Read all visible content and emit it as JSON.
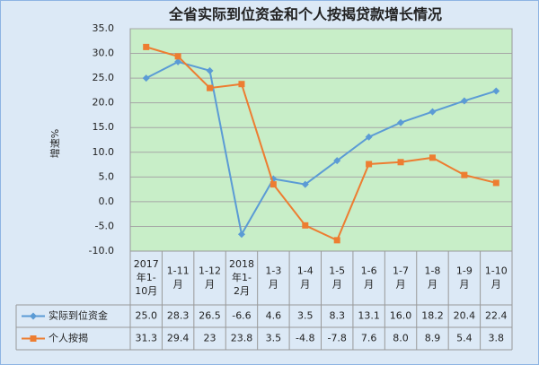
{
  "chart_data": {
    "type": "line",
    "title": "全省实际到位资金和个人按揭贷款增长情况",
    "y_label": "增速%",
    "categories": [
      "2017年1-10月",
      "1-11月",
      "1-12月",
      "2018年1-2月",
      "1-3月",
      "1-4月",
      "1-5月",
      "1-6月",
      "1-7月",
      "1-8月",
      "1-9月",
      "1-10月"
    ],
    "series": [
      {
        "name": "实际到位资金",
        "color": "#5b9bd5",
        "marker": "diamond",
        "values": [
          25.0,
          28.3,
          26.5,
          -6.6,
          4.6,
          3.5,
          8.3,
          13.1,
          16.0,
          18.2,
          20.4,
          22.4
        ],
        "value_labels": [
          "25.0",
          "28.3",
          "26.5",
          "-6.6",
          "4.6",
          "3.5",
          "8.3",
          "13.1",
          "16.0",
          "18.2",
          "20.4",
          "22.4"
        ]
      },
      {
        "name": "个人按揭",
        "color": "#ed7d31",
        "marker": "square",
        "values": [
          31.3,
          29.4,
          23,
          23.8,
          3.5,
          -4.8,
          -7.8,
          7.6,
          8.0,
          8.9,
          5.4,
          3.8
        ],
        "value_labels": [
          "31.3",
          "29.4",
          "23",
          "23.8",
          "3.5",
          "-4.8",
          "-7.8",
          "7.6",
          "8.0",
          "8.9",
          "5.4",
          "3.8"
        ]
      }
    ],
    "ylim": [
      -10,
      35
    ],
    "yticks": [
      {
        "value": 35,
        "label": "35.0"
      },
      {
        "value": 30,
        "label": "30.0"
      },
      {
        "value": 25,
        "label": "25.0"
      },
      {
        "value": 20,
        "label": "20.0"
      },
      {
        "value": 15,
        "label": "15.0"
      },
      {
        "value": 10,
        "label": "10.0"
      },
      {
        "value": 5,
        "label": "5.0"
      },
      {
        "value": 0,
        "label": "0.0"
      },
      {
        "value": -5,
        "label": "-5.0"
      },
      {
        "value": -10,
        "label": "-10.0"
      }
    ],
    "grid": true,
    "plot_background": "#c8eec8"
  }
}
